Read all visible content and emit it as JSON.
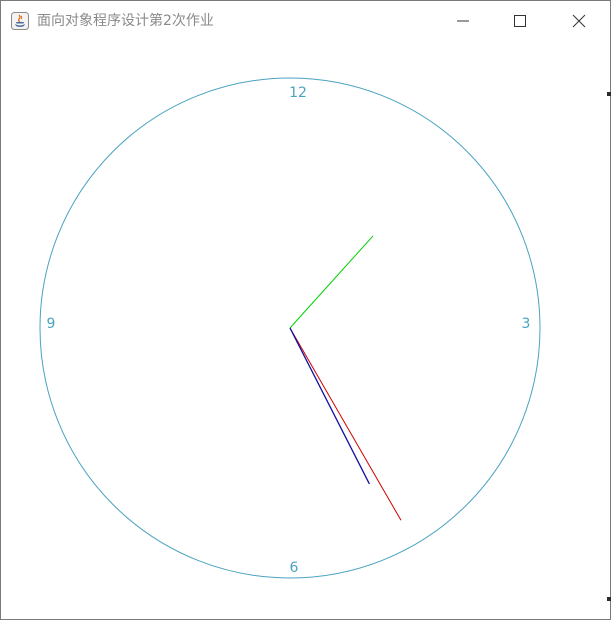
{
  "window": {
    "title": "面向对象程序设计第2次作业",
    "controls": {
      "minimize_icon": "minimize-icon",
      "maximize_icon": "maximize-icon",
      "close_icon": "close-icon"
    }
  },
  "clock": {
    "labels": {
      "twelve": "12",
      "three": "3",
      "six": "6",
      "nine": "9"
    },
    "colors": {
      "face": "#4aa3c0",
      "hour_hand": "#00d000",
      "minute_hand": "#1010a0",
      "second_hand": "#d00000",
      "title_text": "#8a8a8a"
    },
    "time": {
      "hour_hand_angle_deg": 42,
      "minute_hand_angle_deg": 153,
      "second_hand_angle_deg": 150
    }
  }
}
